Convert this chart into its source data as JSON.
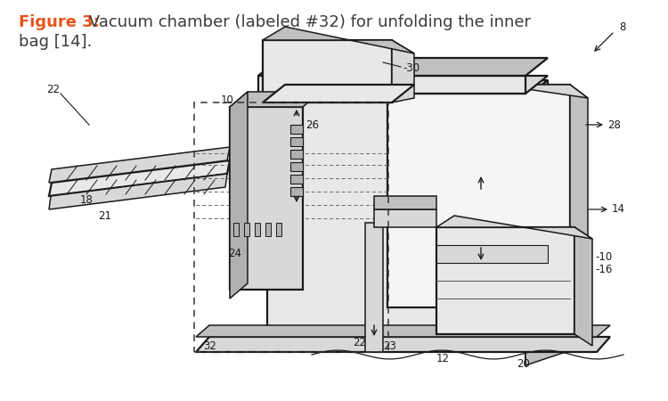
{
  "figure_label": "Figure 3:",
  "figure_label_color": "#E8541A",
  "caption_line1": " Vacuum chamber (labeled #32) for unfolding the inner",
  "caption_line2": "bag [14].",
  "caption_color": "#3a3a3a",
  "caption_fontsize": 13.0,
  "bg_color": "#ffffff",
  "fig_width": 7.5,
  "fig_height": 4.5,
  "dpi": 100,
  "label_fontsize": 8.5,
  "dark": "#1a1a1a",
  "gray1": "#c0c0c0",
  "gray2": "#d8d8d8",
  "gray3": "#e8e8e8",
  "gray4": "#b0b0b0",
  "gray5": "#a0a0a0"
}
